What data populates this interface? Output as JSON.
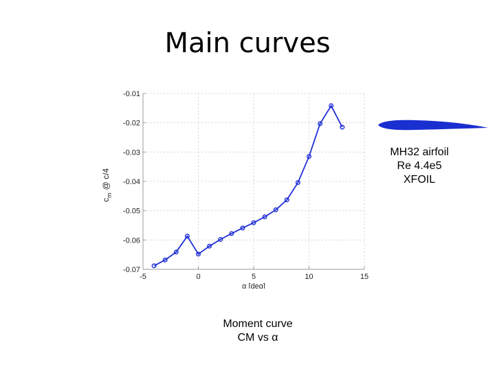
{
  "slide": {
    "title": "Main curves"
  },
  "caption": {
    "line1": "Moment curve",
    "line2": "CM vs α"
  },
  "airfoil_note": {
    "line1": "MH32 airfoil",
    "line2": "Re 4.4e5",
    "line3": "XFOIL"
  },
  "colors": {
    "series": "#1f2fd6",
    "airfoil": "#1a2fd0",
    "grid": "#c8c8c8"
  },
  "chart_data": {
    "type": "line",
    "xlabel": "α [deg]",
    "ylabel_main": "c",
    "ylabel_sub": "m",
    "ylabel_rest": "@ c/4",
    "xlim": [
      -5,
      15
    ],
    "ylim": [
      -0.07,
      -0.01
    ],
    "xticks": [
      -5,
      0,
      5,
      10,
      15
    ],
    "xtick_labels": [
      "-5",
      "0",
      "5",
      "10",
      "15"
    ],
    "yticks": [
      -0.07,
      -0.06,
      -0.05,
      -0.04,
      -0.03,
      -0.02,
      -0.01
    ],
    "ytick_labels": [
      "-0.07",
      "-0.06",
      "-0.05",
      "-0.04",
      "-0.03",
      "-0.02",
      "-0.01"
    ],
    "grid": true,
    "series": [
      {
        "x": [
          -4,
          -3,
          -2,
          -1,
          0,
          1,
          2,
          3,
          4,
          5,
          6,
          7,
          8,
          9,
          10,
          11,
          12,
          13
        ],
        "y": [
          -0.0688,
          -0.0668,
          -0.0641,
          -0.0587,
          -0.0648,
          -0.0621,
          -0.0598,
          -0.0578,
          -0.0559,
          -0.0541,
          -0.0521,
          -0.0497,
          -0.0463,
          -0.0404,
          -0.0315,
          -0.0203,
          -0.0142,
          -0.0215
        ]
      }
    ]
  }
}
